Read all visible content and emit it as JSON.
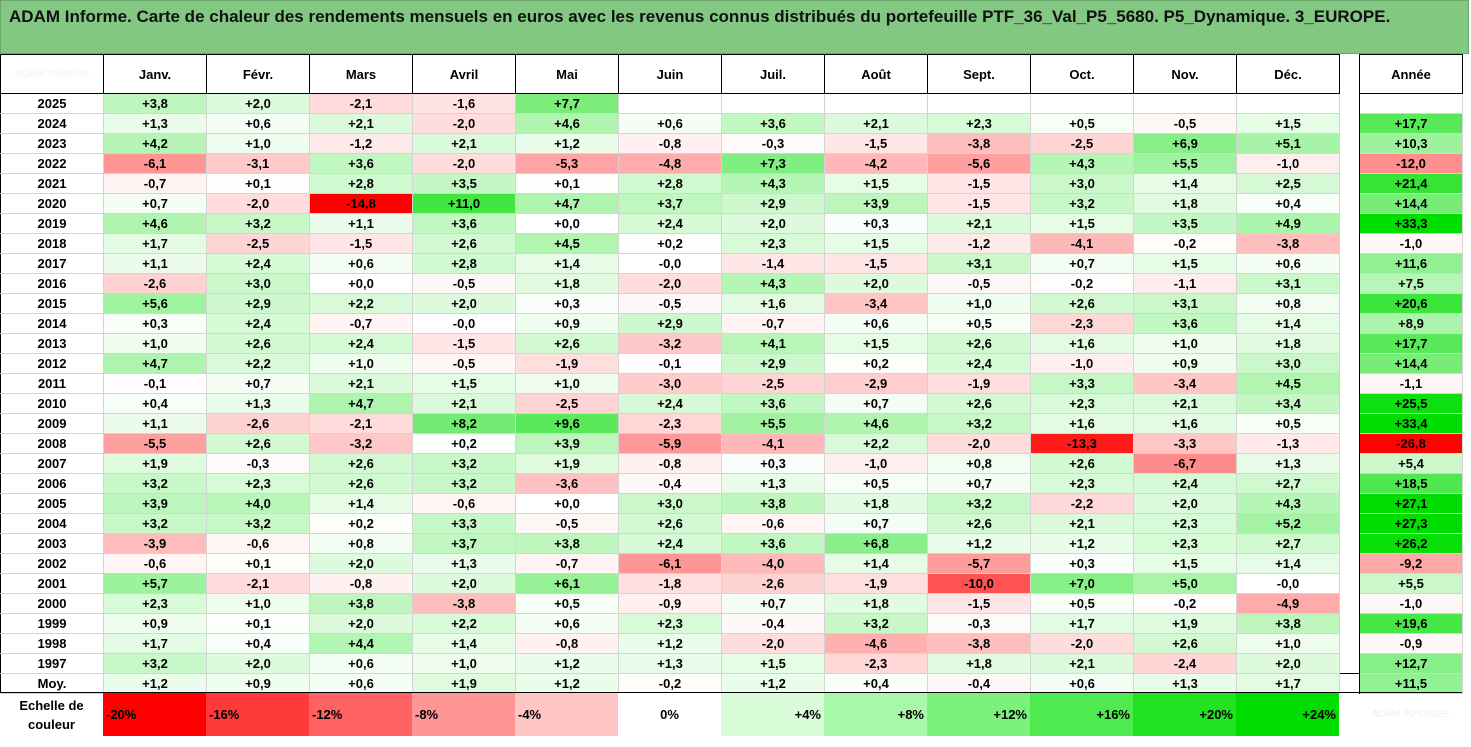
{
  "title": "ADAM Informe. Carte de chaleur des rendements mensuels en euros avec les revenus connus distribués du portefeuille PTF_36_Val_P5_5680. P5_Dynamique. 3_EUROPE.",
  "corner_label": "ADAM TARSIUS",
  "scale_label": "Echelle de couleur",
  "scale_ghost": "ADAM INFORME",
  "scale": [
    {
      "label": "-20%",
      "color": "#ff0000"
    },
    {
      "label": "-16%",
      "color": "#ff3a3a"
    },
    {
      "label": "-12%",
      "color": "#ff6262"
    },
    {
      "label": "-8%",
      "color": "#ff9595"
    },
    {
      "label": "-4%",
      "color": "#ffc4c4"
    },
    {
      "label": "0%",
      "color": "#ffffff"
    },
    {
      "label": "+4%",
      "color": "#d9fcd9"
    },
    {
      "label": "+8%",
      "color": "#a9f7a9"
    },
    {
      "label": "+12%",
      "color": "#7cf17c"
    },
    {
      "label": "+16%",
      "color": "#4fea4f"
    },
    {
      "label": "+20%",
      "color": "#21e321"
    },
    {
      "label": "+24%",
      "color": "#00dd00"
    }
  ],
  "chart_data": {
    "type": "heatmap",
    "columns": [
      "Janv.",
      "Févr.",
      "Mars",
      "Avril",
      "Mai",
      "Juin",
      "Juil.",
      "Août",
      "Sept.",
      "Oct.",
      "Nov.",
      "Déc."
    ],
    "annual_label": "Année",
    "average_label": "Moy.",
    "rows": [
      {
        "year": "2025",
        "values": [
          "+3,8",
          "+2,0",
          "-2,1",
          "-1,6",
          "+7,7",
          "",
          "",
          "",
          "",
          "",
          "",
          ""
        ],
        "annual": ""
      },
      {
        "year": "2024",
        "values": [
          "+1,3",
          "+0,6",
          "+2,1",
          "-2,0",
          "+4,6",
          "+0,6",
          "+3,6",
          "+2,1",
          "+2,3",
          "+0,5",
          "-0,5",
          "+1,5"
        ],
        "annual": "+17,7"
      },
      {
        "year": "2023",
        "values": [
          "+4,2",
          "+1,0",
          "-1,2",
          "+2,1",
          "+1,2",
          "-0,8",
          "-0,3",
          "-1,5",
          "-3,8",
          "-2,5",
          "+6,9",
          "+5,1"
        ],
        "annual": "+10,3"
      },
      {
        "year": "2022",
        "values": [
          "-6,1",
          "-3,1",
          "+3,6",
          "-2,0",
          "-5,3",
          "-4,8",
          "+7,3",
          "-4,2",
          "-5,6",
          "+4,3",
          "+5,5",
          "-1,0"
        ],
        "annual": "-12,0"
      },
      {
        "year": "2021",
        "values": [
          "-0,7",
          "+0,1",
          "+2,8",
          "+3,5",
          "+0,1",
          "+2,8",
          "+4,3",
          "+1,5",
          "-1,5",
          "+3,0",
          "+1,4",
          "+2,5"
        ],
        "annual": "+21,4"
      },
      {
        "year": "2020",
        "values": [
          "+0,7",
          "-2,0",
          "-14,8",
          "+11,0",
          "+4,7",
          "+3,7",
          "+2,9",
          "+3,9",
          "-1,5",
          "+3,2",
          "+1,8",
          "+0,4"
        ],
        "annual": "+14,4"
      },
      {
        "year": "2019",
        "values": [
          "+4,6",
          "+3,2",
          "+1,1",
          "+3,6",
          "+0,0",
          "+2,4",
          "+2,0",
          "+0,3",
          "+2,1",
          "+1,5",
          "+3,5",
          "+4,9"
        ],
        "annual": "+33,3"
      },
      {
        "year": "2018",
        "values": [
          "+1,7",
          "-2,5",
          "-1,5",
          "+2,6",
          "+4,5",
          "+0,2",
          "+2,3",
          "+1,5",
          "-1,2",
          "-4,1",
          "-0,2",
          "-3,8"
        ],
        "annual": "-1,0"
      },
      {
        "year": "2017",
        "values": [
          "+1,1",
          "+2,4",
          "+0,6",
          "+2,8",
          "+1,4",
          "-0,0",
          "-1,4",
          "-1,5",
          "+3,1",
          "+0,7",
          "+1,5",
          "+0,6"
        ],
        "annual": "+11,6"
      },
      {
        "year": "2016",
        "values": [
          "-2,6",
          "+3,0",
          "+0,0",
          "-0,5",
          "+1,8",
          "-2,0",
          "+4,3",
          "+2,0",
          "-0,5",
          "-0,2",
          "-1,1",
          "+3,1"
        ],
        "annual": "+7,5"
      },
      {
        "year": "2015",
        "values": [
          "+5,6",
          "+2,9",
          "+2,2",
          "+2,0",
          "+0,3",
          "-0,5",
          "+1,6",
          "-3,4",
          "+1,0",
          "+2,6",
          "+3,1",
          "+0,8"
        ],
        "annual": "+20,6"
      },
      {
        "year": "2014",
        "values": [
          "+0,3",
          "+2,4",
          "-0,7",
          "-0,0",
          "+0,9",
          "+2,9",
          "-0,7",
          "+0,6",
          "+0,5",
          "-2,3",
          "+3,6",
          "+1,4"
        ],
        "annual": "+8,9"
      },
      {
        "year": "2013",
        "values": [
          "+1,0",
          "+2,6",
          "+2,4",
          "-1,5",
          "+2,6",
          "-3,2",
          "+4,1",
          "+1,5",
          "+2,6",
          "+1,6",
          "+1,0",
          "+1,8"
        ],
        "annual": "+17,7"
      },
      {
        "year": "2012",
        "values": [
          "+4,7",
          "+2,2",
          "+1,0",
          "-0,5",
          "-1,9",
          "-0,1",
          "+2,9",
          "+0,2",
          "+2,4",
          "-1,0",
          "+0,9",
          "+3,0"
        ],
        "annual": "+14,4"
      },
      {
        "year": "2011",
        "values": [
          "-0,1",
          "+0,7",
          "+2,1",
          "+1,5",
          "+1,0",
          "-3,0",
          "-2,5",
          "-2,9",
          "-1,9",
          "+3,3",
          "-3,4",
          "+4,5"
        ],
        "annual": "-1,1"
      },
      {
        "year": "2010",
        "values": [
          "+0,4",
          "+1,3",
          "+4,7",
          "+2,1",
          "-2,5",
          "+2,4",
          "+3,6",
          "+0,7",
          "+2,6",
          "+2,3",
          "+2,1",
          "+3,4"
        ],
        "annual": "+25,5"
      },
      {
        "year": "2009",
        "values": [
          "+1,1",
          "-2,6",
          "-2,1",
          "+8,2",
          "+9,6",
          "-2,3",
          "+5,5",
          "+4,6",
          "+3,2",
          "+1,6",
          "+1,6",
          "+0,5"
        ],
        "annual": "+33,4"
      },
      {
        "year": "2008",
        "values": [
          "-5,5",
          "+2,6",
          "-3,2",
          "+0,2",
          "+3,9",
          "-5,9",
          "-4,1",
          "+2,2",
          "-2,0",
          "-13,3",
          "-3,3",
          "-1,3"
        ],
        "annual": "-26,8"
      },
      {
        "year": "2007",
        "values": [
          "+1,9",
          "-0,3",
          "+2,6",
          "+3,2",
          "+1,9",
          "-0,8",
          "+0,3",
          "-1,0",
          "+0,8",
          "+2,6",
          "-6,7",
          "+1,3"
        ],
        "annual": "+5,4"
      },
      {
        "year": "2006",
        "values": [
          "+3,2",
          "+2,3",
          "+2,6",
          "+3,2",
          "-3,6",
          "-0,4",
          "+1,3",
          "+0,5",
          "+0,7",
          "+2,3",
          "+2,4",
          "+2,7"
        ],
        "annual": "+18,5"
      },
      {
        "year": "2005",
        "values": [
          "+3,9",
          "+4,0",
          "+1,4",
          "-0,6",
          "+0,0",
          "+3,0",
          "+3,8",
          "+1,8",
          "+3,2",
          "-2,2",
          "+2,0",
          "+4,3"
        ],
        "annual": "+27,1"
      },
      {
        "year": "2004",
        "values": [
          "+3,2",
          "+3,2",
          "+0,2",
          "+3,3",
          "-0,5",
          "+2,6",
          "-0,6",
          "+0,7",
          "+2,6",
          "+2,1",
          "+2,3",
          "+5,2"
        ],
        "annual": "+27,3"
      },
      {
        "year": "2003",
        "values": [
          "-3,9",
          "-0,6",
          "+0,8",
          "+3,7",
          "+3,8",
          "+2,4",
          "+3,6",
          "+6,8",
          "+1,2",
          "+1,2",
          "+2,3",
          "+2,7"
        ],
        "annual": "+26,2"
      },
      {
        "year": "2002",
        "values": [
          "-0,6",
          "+0,1",
          "+2,0",
          "+1,3",
          "-0,7",
          "-6,1",
          "-4,0",
          "+1,4",
          "-5,7",
          "+0,3",
          "+1,5",
          "+1,4"
        ],
        "annual": "-9,2"
      },
      {
        "year": "2001",
        "values": [
          "+5,7",
          "-2,1",
          "-0,8",
          "+2,0",
          "+6,1",
          "-1,8",
          "-2,6",
          "-1,9",
          "-10,0",
          "+7,0",
          "+5,0",
          "-0,0"
        ],
        "annual": "+5,5"
      },
      {
        "year": "2000",
        "values": [
          "+2,3",
          "+1,0",
          "+3,8",
          "-3,8",
          "+0,5",
          "-0,9",
          "+0,7",
          "+1,8",
          "-1,5",
          "+0,5",
          "-0,2",
          "-4,9"
        ],
        "annual": "-1,0"
      },
      {
        "year": "1999",
        "values": [
          "+0,9",
          "+0,1",
          "+2,0",
          "+2,2",
          "+0,6",
          "+2,3",
          "-0,4",
          "+3,2",
          "-0,3",
          "+1,7",
          "+1,9",
          "+3,8"
        ],
        "annual": "+19,6"
      },
      {
        "year": "1998",
        "values": [
          "+1,7",
          "+0,4",
          "+4,4",
          "+1,4",
          "-0,8",
          "+1,2",
          "-2,0",
          "-4,6",
          "-3,8",
          "-2,0",
          "+2,6",
          "+1,0"
        ],
        "annual": "-0,9"
      },
      {
        "year": "1997",
        "values": [
          "+3,2",
          "+2,0",
          "+0,6",
          "+1,0",
          "+1,2",
          "+1,3",
          "+1,5",
          "-2,3",
          "+1,8",
          "+2,1",
          "-2,4",
          "+2,0"
        ],
        "annual": "+12,7"
      }
    ],
    "average": {
      "values": [
        "+1,2",
        "+0,9",
        "+0,6",
        "+1,9",
        "+1,2",
        "-0,2",
        "+1,2",
        "+0,4",
        "-0,4",
        "+0,6",
        "+1,3",
        "+1,7"
      ],
      "annual": "+11,5"
    }
  }
}
